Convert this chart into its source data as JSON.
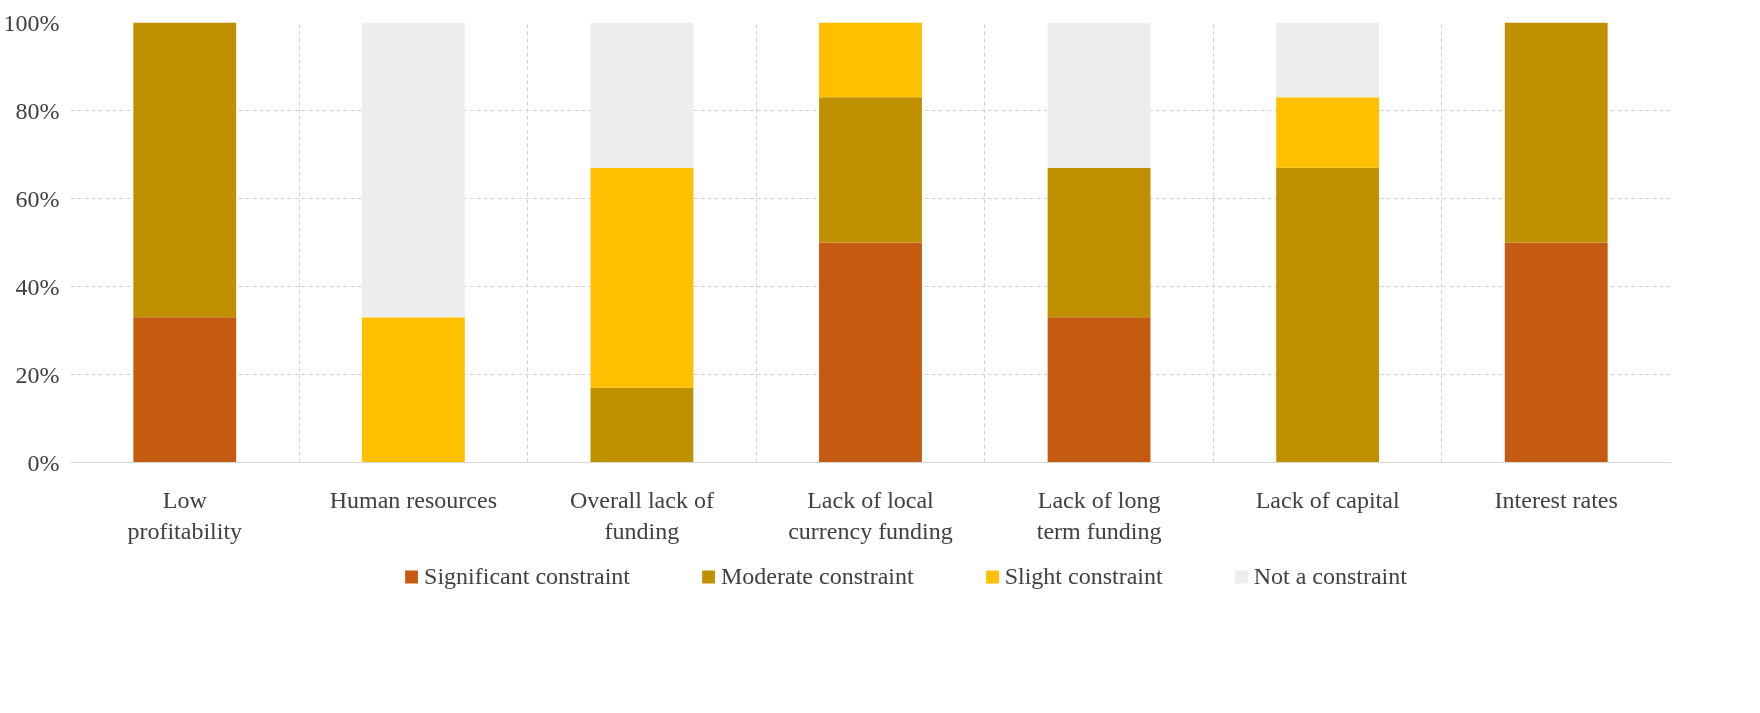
{
  "chart_data": {
    "type": "bar",
    "stacked": true,
    "categories": [
      "Low profitability",
      "Human resources",
      "Overall lack of funding",
      "Lack of local currency funding",
      "Lack of long term funding",
      "Lack of capital",
      "Interest rates"
    ],
    "series": [
      {
        "name": "Significant constraint",
        "color": "#c55a11",
        "values": [
          33,
          0,
          0,
          50,
          33,
          0,
          50
        ]
      },
      {
        "name": "Moderate constraint",
        "color": "#bf9000",
        "values": [
          67,
          0,
          17,
          33,
          34,
          67,
          50
        ]
      },
      {
        "name": "Slight constraint",
        "color": "#ffc000",
        "values": [
          0,
          33,
          50,
          17,
          0,
          16,
          0
        ]
      },
      {
        "name": "Not a constraint",
        "color": "#ededed",
        "values": [
          0,
          67,
          33,
          0,
          33,
          17,
          0
        ]
      }
    ],
    "ylim": [
      0,
      100
    ],
    "yticks": [
      {
        "value": 0,
        "label": "0%"
      },
      {
        "value": 20,
        "label": "20%"
      },
      {
        "value": 40,
        "label": "40%"
      },
      {
        "value": 60,
        "label": "60%"
      },
      {
        "value": 80,
        "label": "80%"
      },
      {
        "value": 100,
        "label": "100%"
      }
    ],
    "grid": true,
    "legend": "bottom"
  }
}
